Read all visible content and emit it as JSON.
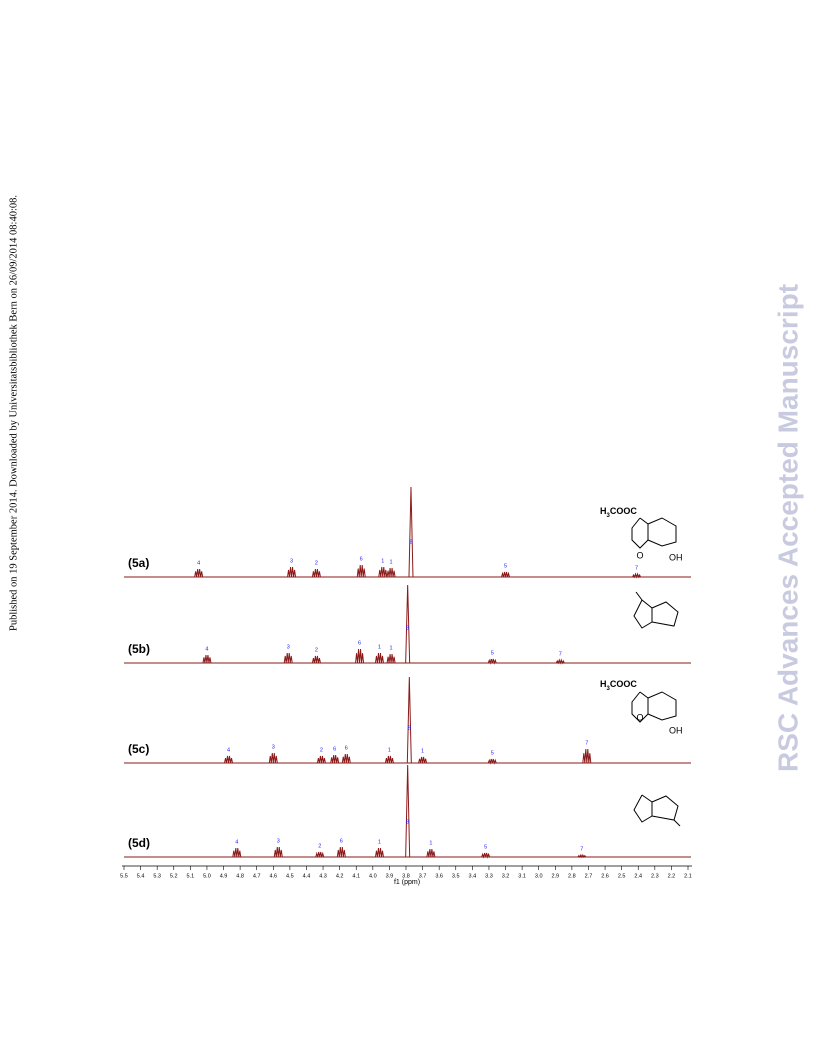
{
  "side_text": "Published on 19 September 2014. Downloaded by Universitatsbibliothek Bern on 26/09/2014 08:40:08.",
  "watermark": "RSC Advances Accepted Manuscript",
  "structures": {
    "formula_h": "H",
    "formula_3": "3",
    "formula_rest": "COOC",
    "oh": "OH",
    "o": "O"
  },
  "chart_data": {
    "type": "spectrum",
    "xlabel": "f1 (ppm)",
    "xlim": [
      5.5,
      2.1
    ],
    "xticks": [
      5.5,
      5.4,
      5.3,
      5.2,
      5.1,
      {
        "value": 5,
        "label": "5.0"
      },
      4.9,
      4.8,
      4.7,
      4.6,
      4.5,
      4.4,
      4.3,
      4.2,
      4.1,
      {
        "value": 4,
        "label": "4.0"
      },
      3.9,
      3.8,
      3.7,
      3.6,
      3.5,
      3.4,
      3.3,
      3.2,
      3.1,
      {
        "value": 3,
        "label": "3.0"
      },
      2.9,
      2.8,
      2.7,
      2.6,
      2.5,
      2.4,
      2.3,
      2.2,
      2.1
    ],
    "series": [
      {
        "name": "(5a)",
        "color": "#8b1a1a",
        "x": [
          5.05,
          4.49,
          4.34,
          4.07,
          3.94,
          3.89,
          3.77,
          3.2,
          2.41
        ],
        "values": [
          8,
          10,
          8,
          12,
          10,
          9,
          90,
          5,
          3
        ],
        "peak_labels": [
          "4",
          "3",
          "2",
          "6",
          "1",
          "1",
          "8",
          "5",
          "7"
        ]
      },
      {
        "name": "(5b)",
        "color": "#8b1a1a",
        "x": [
          5.0,
          4.51,
          4.34,
          4.08,
          3.96,
          3.89,
          3.79,
          3.28,
          2.87
        ],
        "values": [
          8,
          10,
          7,
          14,
          10,
          9,
          78,
          4,
          3
        ],
        "peak_labels": [
          "4",
          "3",
          "2",
          "6",
          "1",
          "1",
          "8",
          "5",
          "7"
        ]
      },
      {
        "name": "(5c)",
        "color": "#8b1a1a",
        "x": [
          4.87,
          4.6,
          4.31,
          4.23,
          4.16,
          3.9,
          3.78,
          3.7,
          3.28,
          2.71
        ],
        "values": [
          7,
          10,
          7,
          8,
          9,
          7,
          86,
          6,
          4,
          14
        ],
        "peak_labels": [
          "4",
          "3",
          "2",
          "6",
          "6",
          "1",
          "8",
          "1",
          "5",
          "7"
        ]
      },
      {
        "name": "(5d)",
        "color": "#8b1a1a",
        "x": [
          4.82,
          4.57,
          4.32,
          4.19,
          3.96,
          3.79,
          3.65,
          3.32,
          2.74
        ],
        "values": [
          9,
          10,
          5,
          10,
          9,
          92,
          8,
          4,
          2
        ],
        "peak_labels": [
          "4",
          "3",
          "2",
          "6",
          "1",
          "8",
          "1",
          "5",
          "7"
        ]
      }
    ]
  }
}
